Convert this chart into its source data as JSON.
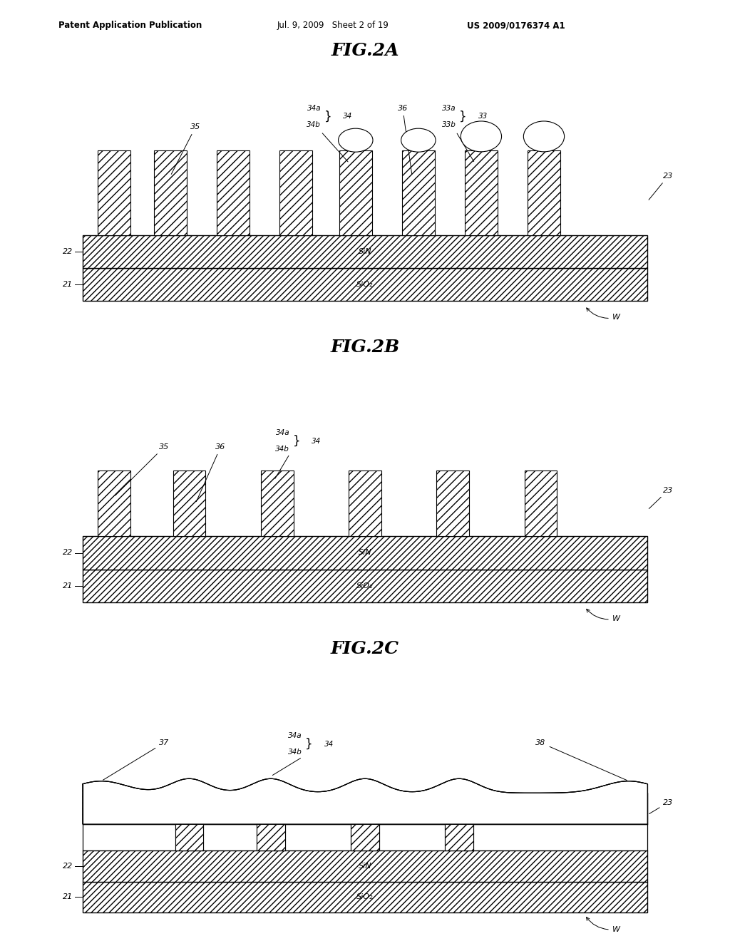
{
  "bg_color": "#ffffff",
  "header_left": "Patent Application Publication",
  "header_mid": "Jul. 9, 2009   Sheet 2 of 19",
  "header_right": "US 2009/0176374 A1",
  "fig_titles": [
    "FIG.2A",
    "FIG.2B",
    "FIG.2C"
  ],
  "page_width": 10.24,
  "page_height": 13.2,
  "dpi": 100
}
